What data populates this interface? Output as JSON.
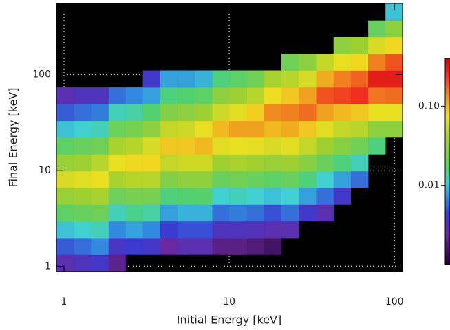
{
  "chart_data": {
    "type": "heatmap",
    "x_label": "Initial Energy [keV]",
    "y_label": "Final Energy [keV]",
    "xscale": "log",
    "yscale": "log",
    "colorbar_scale": "log",
    "xlim": [
      0.9,
      112
    ],
    "ylim": [
      0.88,
      550
    ],
    "xticks": [
      1,
      10,
      100
    ],
    "yticks": [
      1,
      10,
      100
    ],
    "grid": true,
    "clim": [
      0.001,
      0.4
    ],
    "colorbar_ticks": [
      0.01,
      {
        "value": 0.1,
        "label": "0.10"
      }
    ],
    "x_bins": [
      0.9,
      1.15,
      1.46,
      1.86,
      2.36,
      3.0,
      3.82,
      4.87,
      6.2,
      7.9,
      10,
      12.8,
      16.3,
      20.7,
      26.4,
      33.6,
      42.8,
      54.5,
      69.4,
      88.3,
      112
    ],
    "y_bins": [
      0.88,
      1.32,
      1.97,
      2.94,
      4.4,
      6.6,
      9.8,
      14.7,
      22,
      32.8,
      49,
      73.3,
      110,
      164,
      245,
      366,
      550
    ],
    "values": [
      [
        0.003,
        0.0054,
        0.01,
        0.018,
        0.033,
        0.06,
        0.033,
        0.018,
        0.01,
        0.0054,
        0.003,
        null,
        null,
        null,
        null,
        null
      ],
      [
        0.0035,
        0.006,
        0.011,
        0.02,
        0.035,
        0.065,
        0.036,
        0.02,
        0.011,
        0.006,
        0.0035,
        null,
        null,
        null,
        null,
        null
      ],
      [
        0.004,
        0.007,
        0.012,
        0.021,
        0.04,
        0.07,
        0.045,
        0.022,
        0.012,
        0.0065,
        0.0035,
        null,
        null,
        null,
        null,
        null
      ],
      [
        0.0021,
        0.0039,
        0.007,
        0.012,
        0.021,
        0.039,
        0.07,
        0.039,
        0.021,
        0.012,
        0.006,
        null,
        null,
        null,
        null,
        null
      ],
      [
        null,
        0.0045,
        0.008,
        0.014,
        0.024,
        0.044,
        0.08,
        0.044,
        0.024,
        0.013,
        0.007,
        null,
        null,
        null,
        null,
        null
      ],
      [
        null,
        0.004,
        0.007,
        0.013,
        0.024,
        0.045,
        0.08,
        0.06,
        0.03,
        0.016,
        0.008,
        0.004,
        null,
        null,
        null,
        null
      ],
      [
        null,
        0.0025,
        0.0045,
        0.008,
        0.015,
        0.027,
        0.05,
        0.09,
        0.05,
        0.027,
        0.015,
        0.008,
        null,
        null,
        null,
        null
      ],
      [
        null,
        0.003,
        0.005,
        0.009,
        0.016,
        0.03,
        0.055,
        0.09,
        0.055,
        0.03,
        0.016,
        0.008,
        null,
        null,
        null,
        null
      ],
      [
        null,
        0.003,
        0.005,
        0.009,
        0.017,
        0.03,
        0.055,
        0.1,
        0.07,
        0.035,
        0.018,
        0.009,
        null,
        null,
        null,
        null
      ],
      [
        null,
        0.002,
        0.0035,
        0.006,
        0.011,
        0.02,
        0.036,
        0.065,
        0.1,
        0.055,
        0.03,
        0.015,
        null,
        null,
        null,
        null
      ],
      [
        null,
        0.002,
        0.0035,
        0.0065,
        0.012,
        0.022,
        0.04,
        0.07,
        0.12,
        0.066,
        0.036,
        0.018,
        null,
        null,
        null,
        null
      ],
      [
        null,
        0.0018,
        0.0033,
        0.006,
        0.011,
        0.02,
        0.037,
        0.068,
        0.12,
        0.085,
        0.045,
        0.022,
        null,
        null,
        null,
        null
      ],
      [
        null,
        0.0015,
        0.003,
        0.005,
        0.01,
        0.018,
        0.033,
        0.06,
        0.1,
        0.14,
        0.077,
        0.04,
        null,
        null,
        null,
        null
      ],
      [
        null,
        null,
        0.003,
        0.006,
        0.011,
        0.02,
        0.036,
        0.065,
        0.11,
        0.15,
        0.09,
        0.045,
        0.022,
        null,
        null,
        null
      ],
      [
        null,
        null,
        null,
        0.004,
        0.008,
        0.015,
        0.028,
        0.05,
        0.09,
        0.17,
        0.12,
        0.06,
        0.03,
        null,
        null,
        null
      ],
      [
        null,
        null,
        null,
        0.003,
        0.006,
        0.011,
        0.02,
        0.036,
        0.065,
        0.12,
        0.2,
        0.11,
        0.05,
        null,
        null,
        null
      ],
      [
        null,
        null,
        null,
        null,
        0.004,
        0.008,
        0.015,
        0.028,
        0.05,
        0.1,
        0.22,
        0.15,
        0.07,
        0.03,
        null,
        null
      ],
      [
        null,
        null,
        null,
        null,
        null,
        0.006,
        0.012,
        0.022,
        0.045,
        0.09,
        0.25,
        0.18,
        0.08,
        0.035,
        null,
        null
      ],
      [
        null,
        null,
        null,
        null,
        null,
        null,
        null,
        0.015,
        0.03,
        0.07,
        0.16,
        0.3,
        0.15,
        0.06,
        0.02,
        null
      ],
      [
        null,
        null,
        null,
        null,
        null,
        null,
        null,
        null,
        0.03,
        0.07,
        0.17,
        0.3,
        0.2,
        0.08,
        0.03,
        0.01
      ]
    ]
  }
}
